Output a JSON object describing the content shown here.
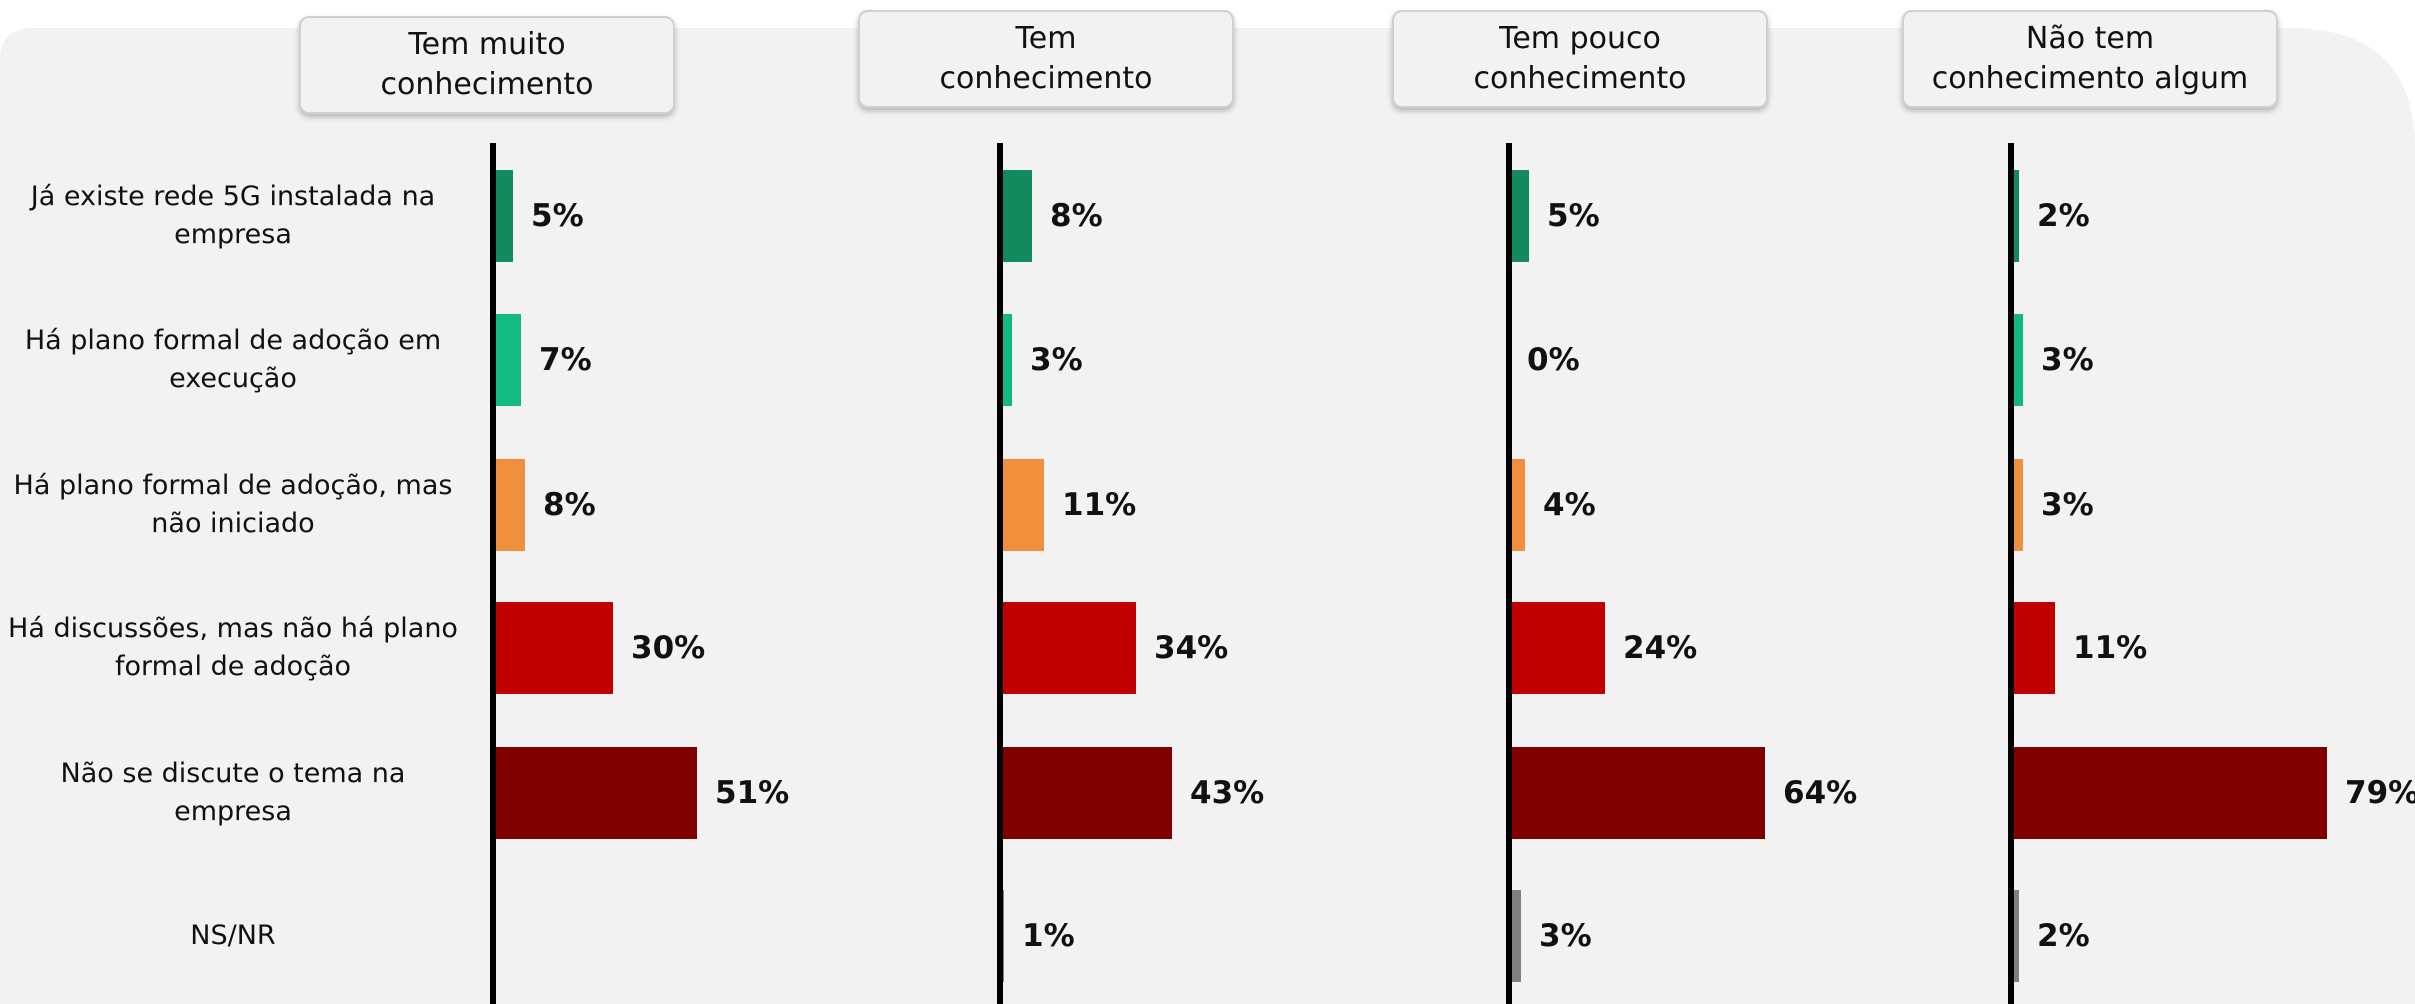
{
  "chart_data": {
    "type": "bar",
    "orientation": "horizontal",
    "categories": [
      "Já existe rede 5G instalada na\nempresa",
      "Há plano formal de adoção em\nexecução",
      "Há plano formal de adoção, mas\nnão iniciado",
      "Há discussões, mas não há plano\nformal de adoção",
      "Não se discute o tema na empresa",
      "NS/NR"
    ],
    "colors": [
      "#138a5e",
      "#12b981",
      "#f0903f",
      "#c00000",
      "#800000",
      "#808080"
    ],
    "series": [
      {
        "name": "Tem muito\nconhecimento",
        "values": [
          5,
          7,
          8,
          30,
          51,
          null
        ],
        "value_labels": [
          "5%",
          "7%",
          "8%",
          "30%",
          "51%",
          null
        ]
      },
      {
        "name": "Tem\nconhecimento",
        "values": [
          8,
          3,
          11,
          34,
          43,
          1
        ],
        "value_labels": [
          "8%",
          "3%",
          "11%",
          "34%",
          "43%",
          "1%"
        ]
      },
      {
        "name": "Tem pouco\nconhecimento",
        "values": [
          5,
          0,
          4,
          24,
          64,
          3
        ],
        "value_labels": [
          "5%",
          "0%",
          "4%",
          "24%",
          "64%",
          "3%"
        ]
      },
      {
        "name": "Não tem\nconhecimento algum",
        "values": [
          2,
          3,
          3,
          11,
          79,
          2
        ],
        "value_labels": [
          "2%",
          "3%",
          "3%",
          "11%",
          "79%",
          "2%"
        ]
      }
    ]
  }
}
